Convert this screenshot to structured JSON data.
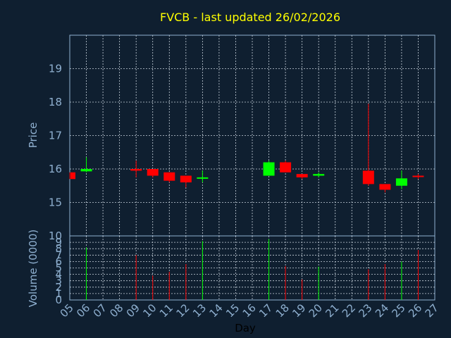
{
  "chart_data": {
    "type": "candlestick",
    "title": "FVCB - last updated 26/02/2026",
    "price_panel": {
      "ylabel": "Price",
      "ylim": [
        14,
        20
      ],
      "yticks": [
        15,
        16,
        17,
        18,
        19
      ]
    },
    "volume_panel": {
      "ylabel": "Volume (0000)",
      "yticks": [
        0,
        1,
        2,
        3,
        4,
        5,
        6,
        7,
        8,
        9
      ],
      "ylim": [
        0,
        10
      ]
    },
    "top_label": "10",
    "xlabel": "Day",
    "x_ticks": [
      "05",
      "06",
      "07",
      "08",
      "09",
      "10",
      "11",
      "12",
      "13",
      "14",
      "15",
      "16",
      "17",
      "18",
      "19",
      "20",
      "21",
      "22",
      "23",
      "24",
      "25",
      "26",
      "27"
    ],
    "xlim": [
      5,
      27
    ],
    "colors": {
      "up": "#00ff00",
      "down": "#ff0000"
    },
    "candles": [
      {
        "day": 5,
        "open": 15.9,
        "close": 15.7,
        "high": 15.9,
        "low": 15.7,
        "volume": 0
      },
      {
        "day": 6,
        "open": 15.93,
        "close": 16.0,
        "high": 16.35,
        "low": 15.9,
        "volume": 8.2
      },
      {
        "day": 9,
        "open": 16.0,
        "close": 15.95,
        "high": 16.25,
        "low": 15.75,
        "volume": 7.0
      },
      {
        "day": 10,
        "open": 16.0,
        "close": 15.8,
        "high": 16.0,
        "low": 15.75,
        "volume": 3.8
      },
      {
        "day": 11,
        "open": 15.9,
        "close": 15.65,
        "high": 15.9,
        "low": 15.6,
        "volume": 4.4
      },
      {
        "day": 12,
        "open": 15.8,
        "close": 15.6,
        "high": 15.8,
        "low": 15.45,
        "volume": 5.6
      },
      {
        "day": 13,
        "open": 15.72,
        "close": 15.75,
        "high": 15.95,
        "low": 15.6,
        "volume": 9.2
      },
      {
        "day": 17,
        "open": 15.8,
        "close": 16.2,
        "high": 16.25,
        "low": 15.8,
        "volume": 9.5
      },
      {
        "day": 18,
        "open": 16.2,
        "close": 15.9,
        "high": 16.25,
        "low": 15.9,
        "volume": 5.3
      },
      {
        "day": 19,
        "open": 15.85,
        "close": 15.75,
        "high": 15.85,
        "low": 15.7,
        "volume": 3.2
      },
      {
        "day": 20,
        "open": 15.8,
        "close": 15.85,
        "high": 15.9,
        "low": 15.75,
        "volume": 5.2
      },
      {
        "day": 23,
        "open": 15.95,
        "close": 15.55,
        "high": 17.95,
        "low": 15.5,
        "volume": 4.8
      },
      {
        "day": 24,
        "open": 15.55,
        "close": 15.38,
        "high": 15.55,
        "low": 15.3,
        "volume": 5.6
      },
      {
        "day": 25,
        "open": 15.5,
        "close": 15.72,
        "high": 15.95,
        "low": 15.4,
        "volume": 6.0
      },
      {
        "day": 26,
        "open": 15.8,
        "close": 15.77,
        "high": 15.85,
        "low": 15.7,
        "volume": 7.8
      }
    ]
  }
}
